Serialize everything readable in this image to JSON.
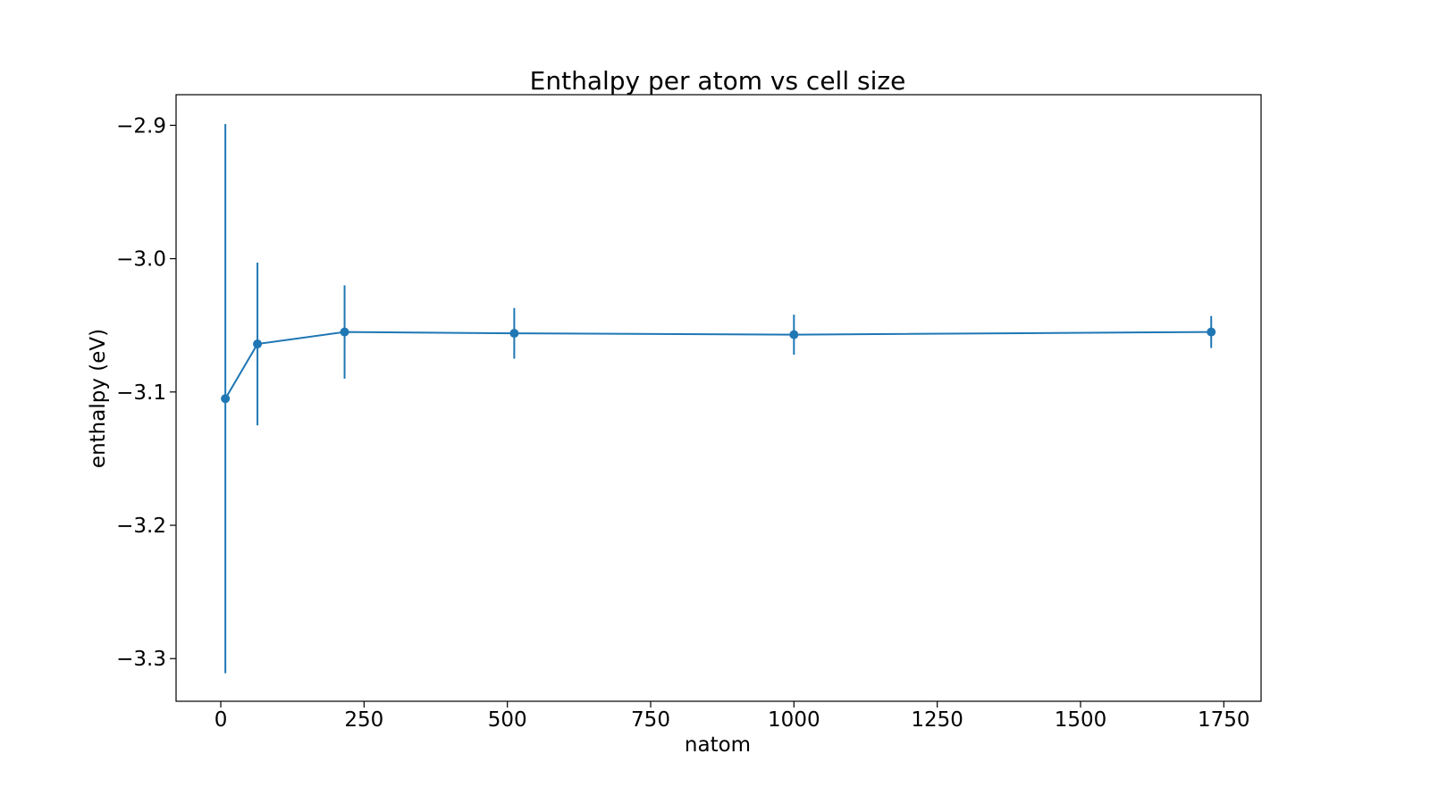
{
  "chart_data": {
    "type": "line",
    "title": "Enthalpy per atom vs cell size",
    "xlabel": "natom",
    "ylabel": "enthalpy (eV)",
    "xlim": [
      -78,
      1815
    ],
    "ylim": [
      -3.332,
      -2.877
    ],
    "grid": false,
    "x_ticks": [
      0,
      250,
      500,
      750,
      1000,
      1250,
      1500,
      1750
    ],
    "x_tick_labels": [
      "0",
      "250",
      "500",
      "750",
      "1000",
      "1250",
      "1500",
      "1750"
    ],
    "y_ticks": [
      -2.9,
      -3.0,
      -3.1,
      -3.2,
      -3.3
    ],
    "y_tick_labels": [
      "−2.9",
      "−3.0",
      "−3.1",
      "−3.2",
      "−3.3"
    ],
    "series": [
      {
        "color": "#1f77b4",
        "marker": "circle",
        "x": [
          8,
          64,
          216,
          512,
          1000,
          1728
        ],
        "y": [
          -3.105,
          -3.064,
          -3.055,
          -3.056,
          -3.057,
          -3.055
        ],
        "yerr": [
          0.206,
          0.061,
          0.035,
          0.019,
          0.015,
          0.012
        ]
      }
    ]
  }
}
